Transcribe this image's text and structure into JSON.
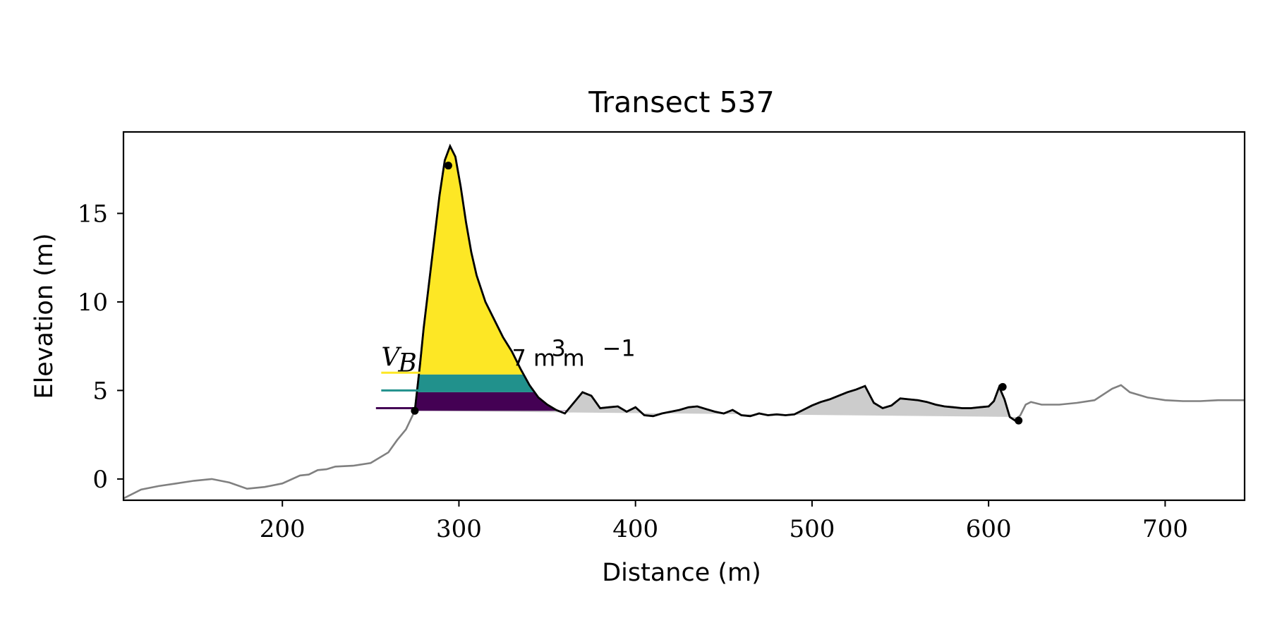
{
  "chart_data": {
    "type": "area",
    "title": "Transect 537",
    "xlabel": "Distance (m)",
    "ylabel": "Elevation (m)",
    "xlim": [
      110,
      745
    ],
    "ylim": [
      -1.2,
      19.6
    ],
    "xticks": [
      200,
      300,
      400,
      500,
      600,
      700
    ],
    "yticks": [
      0,
      5,
      10,
      15
    ],
    "grid": false,
    "profile": {
      "x": [
        110,
        120,
        130,
        140,
        150,
        160,
        170,
        180,
        190,
        200,
        210,
        215,
        220,
        225,
        230,
        240,
        250,
        260,
        265,
        270,
        275,
        278,
        280,
        283,
        286,
        289,
        292,
        295,
        298,
        301,
        304,
        307,
        310,
        315,
        320,
        325,
        330,
        335,
        340,
        345,
        350,
        355,
        360,
        365,
        370,
        375,
        380,
        385,
        390,
        395,
        400,
        405,
        410,
        415,
        420,
        425,
        430,
        435,
        440,
        445,
        450,
        455,
        460,
        465,
        470,
        475,
        480,
        485,
        490,
        495,
        500,
        505,
        510,
        515,
        520,
        525,
        530,
        535,
        540,
        545,
        550,
        555,
        560,
        565,
        570,
        575,
        580,
        585,
        590,
        595,
        600,
        603,
        606,
        609,
        612,
        615,
        618,
        621,
        624,
        630,
        640,
        650,
        660,
        670,
        675,
        680,
        690,
        700,
        710,
        720,
        730,
        745
      ],
      "y": [
        -1.1,
        -0.6,
        -0.4,
        -0.25,
        -0.1,
        0.0,
        -0.2,
        -0.55,
        -0.45,
        -0.25,
        0.2,
        0.25,
        0.5,
        0.55,
        0.7,
        0.75,
        0.9,
        1.5,
        2.2,
        2.8,
        3.85,
        6.5,
        8.5,
        11.0,
        13.5,
        16.0,
        18.0,
        18.8,
        18.2,
        16.5,
        14.5,
        12.8,
        11.5,
        10.0,
        9.0,
        8.0,
        7.2,
        6.2,
        5.3,
        4.6,
        4.2,
        3.9,
        3.7,
        4.3,
        4.9,
        4.7,
        4.0,
        4.05,
        4.1,
        3.8,
        4.05,
        3.6,
        3.55,
        3.7,
        3.8,
        3.9,
        4.05,
        4.1,
        3.95,
        3.8,
        3.7,
        3.9,
        3.6,
        3.55,
        3.7,
        3.6,
        3.65,
        3.6,
        3.65,
        3.9,
        4.15,
        4.35,
        4.5,
        4.7,
        4.9,
        5.05,
        5.25,
        4.3,
        4.0,
        4.15,
        4.55,
        4.5,
        4.45,
        4.35,
        4.2,
        4.1,
        4.05,
        4.0,
        4.0,
        4.05,
        4.1,
        4.4,
        5.2,
        4.5,
        3.5,
        3.3,
        3.6,
        4.2,
        4.35,
        4.2,
        4.2,
        4.3,
        4.45,
        5.1,
        5.3,
        4.9,
        4.6,
        4.45,
        4.4,
        4.4,
        4.45,
        4.45
      ],
      "line_color": "#808080"
    },
    "dune_section": {
      "x_start": 275,
      "x_end": 617,
      "line_color": "#000000",
      "fill_color": "#cccccc"
    },
    "markers": [
      {
        "x": 275,
        "y": 3.85
      },
      {
        "x": 294,
        "y": 17.7
      },
      {
        "x": 608,
        "y": 5.2
      },
      {
        "x": 617,
        "y": 3.3
      }
    ],
    "bands": [
      {
        "level": 3.85,
        "color": "#440154"
      },
      {
        "level": 4.9,
        "color": "#21918c"
      },
      {
        "level": 5.9,
        "color": "#fde725"
      }
    ],
    "legend_lines": [
      {
        "x0": 253,
        "x1": 275,
        "y": 4.0,
        "color": "#440154"
      },
      {
        "x0": 256,
        "x1": 278,
        "y": 5.0,
        "color": "#21918c"
      },
      {
        "x0": 256,
        "x1": 278,
        "y": 6.0,
        "color": "#fde725"
      }
    ],
    "annotation": {
      "x": 256,
      "y": 6.4,
      "math_label": "V",
      "math_sub": "B",
      "text": "7 m",
      "unit_sup": "3",
      "unit_tail": " m",
      "unit_tail_sup": "−1"
    },
    "colors": {
      "axis": "#000000",
      "background": "#ffffff"
    }
  }
}
